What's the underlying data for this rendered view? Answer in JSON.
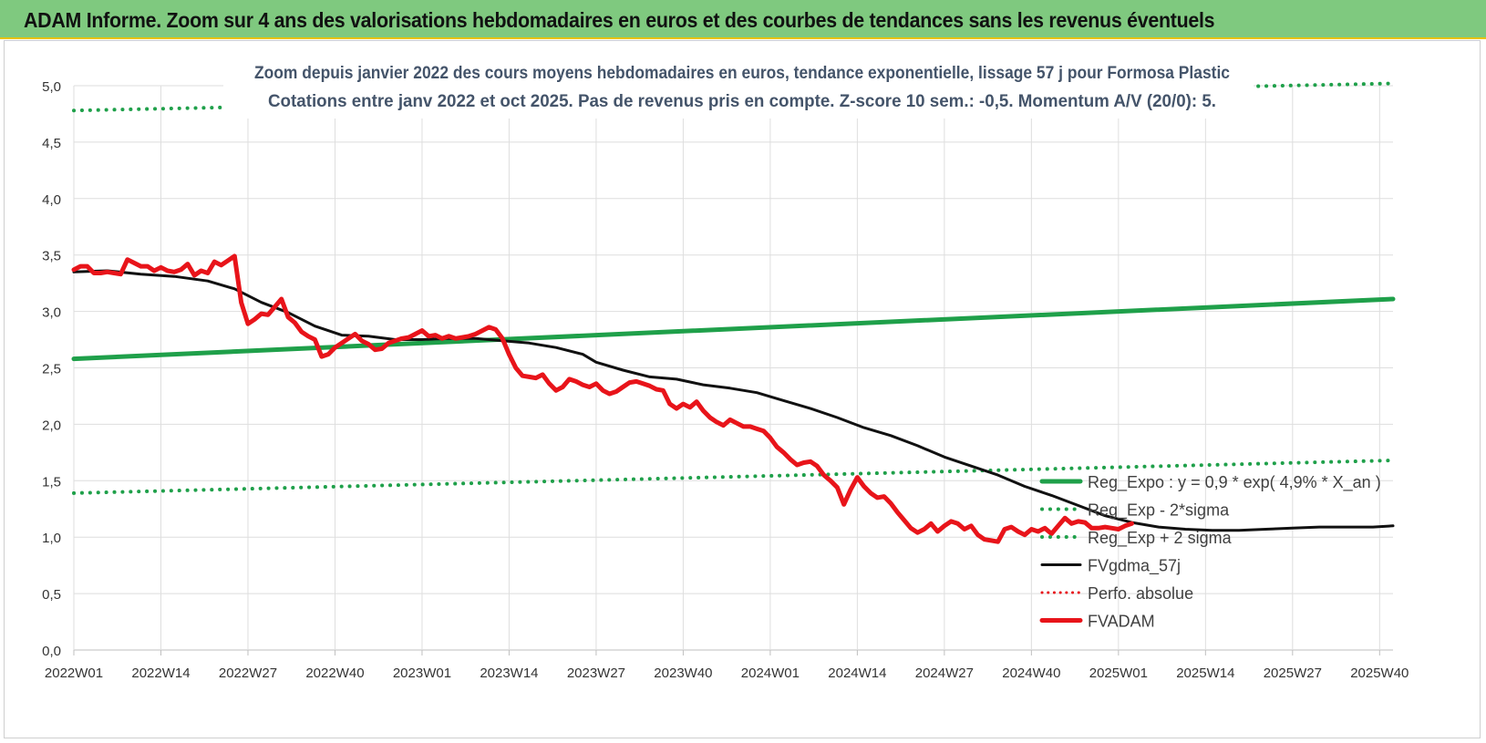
{
  "banner": {
    "title": "ADAM Informe. Zoom sur 4 ans des valorisations hebdomadaires en euros et des courbes de tendances sans les revenus éventuels"
  },
  "chart_data": {
    "type": "line",
    "title": "Zoom depuis janvier 2022 des cours moyens hebdomadaires en euros, tendance exponentielle, lissage 57 j pour Formosa Plastic",
    "subtitle": "Cotations entre janv 2022 et oct 2025. Pas de revenus pris en compte. Z-score 10 sem.: -0,5.  Momentum A/V (20/0): 5.",
    "xlabel": "",
    "ylabel": "",
    "ylim": [
      0,
      5
    ],
    "y_ticks": [
      "0,0",
      "0,5",
      "1,0",
      "1,5",
      "2,0",
      "2,5",
      "3,0",
      "3,5",
      "4,0",
      "4,5",
      "5,0"
    ],
    "x_range": [
      0,
      197
    ],
    "x_ticks": [
      {
        "x": 0,
        "label": "2022W01"
      },
      {
        "x": 13,
        "label": "2022W14"
      },
      {
        "x": 26,
        "label": "2022W27"
      },
      {
        "x": 39,
        "label": "2022W40"
      },
      {
        "x": 52,
        "label": "2023W01"
      },
      {
        "x": 65,
        "label": "2023W14"
      },
      {
        "x": 78,
        "label": "2023W27"
      },
      {
        "x": 91,
        "label": "2023W40"
      },
      {
        "x": 104,
        "label": "2024W01"
      },
      {
        "x": 117,
        "label": "2024W14"
      },
      {
        "x": 130,
        "label": "2024W27"
      },
      {
        "x": 143,
        "label": "2024W40"
      },
      {
        "x": 156,
        "label": "2025W01"
      },
      {
        "x": 169,
        "label": "2025W14"
      },
      {
        "x": 182,
        "label": "2025W27"
      },
      {
        "x": 195,
        "label": "2025W40"
      }
    ],
    "grid": true,
    "legend_position": "right",
    "series": [
      {
        "name": "Reg_Expo : y = 0,9 * exp( 4,9% *  X_an )",
        "style": "solid",
        "color": "#1fa04a",
        "width": 5,
        "points": [
          [
            0,
            2.58
          ],
          [
            197,
            3.11
          ]
        ]
      },
      {
        "name": "Reg_Exp - 2*sigma",
        "style": "dotted",
        "color": "#1fa04a",
        "width": 4,
        "points": [
          [
            0,
            1.39
          ],
          [
            197,
            1.68
          ]
        ]
      },
      {
        "name": "Reg_Exp + 2 sigma",
        "style": "dotted",
        "color": "#1fa04a",
        "width": 4,
        "points": [
          [
            0,
            4.78
          ],
          [
            197,
            5.02
          ]
        ]
      },
      {
        "name": "FVgdma_57j",
        "style": "solid",
        "color": "#111111",
        "width": 3,
        "points": [
          [
            0,
            3.35
          ],
          [
            5,
            3.36
          ],
          [
            10,
            3.33
          ],
          [
            15,
            3.31
          ],
          [
            20,
            3.27
          ],
          [
            24,
            3.2
          ],
          [
            28,
            3.08
          ],
          [
            32,
            2.99
          ],
          [
            36,
            2.87
          ],
          [
            40,
            2.79
          ],
          [
            44,
            2.78
          ],
          [
            48,
            2.75
          ],
          [
            52,
            2.75
          ],
          [
            56,
            2.76
          ],
          [
            60,
            2.76
          ],
          [
            64,
            2.74
          ],
          [
            68,
            2.72
          ],
          [
            72,
            2.68
          ],
          [
            76,
            2.62
          ],
          [
            78,
            2.55
          ],
          [
            82,
            2.48
          ],
          [
            86,
            2.42
          ],
          [
            90,
            2.4
          ],
          [
            94,
            2.35
          ],
          [
            98,
            2.32
          ],
          [
            102,
            2.28
          ],
          [
            106,
            2.21
          ],
          [
            110,
            2.14
          ],
          [
            114,
            2.06
          ],
          [
            118,
            1.97
          ],
          [
            122,
            1.9
          ],
          [
            126,
            1.81
          ],
          [
            130,
            1.71
          ],
          [
            134,
            1.63
          ],
          [
            138,
            1.55
          ],
          [
            142,
            1.45
          ],
          [
            146,
            1.37
          ],
          [
            150,
            1.28
          ],
          [
            154,
            1.19
          ],
          [
            158,
            1.13
          ],
          [
            162,
            1.09
          ],
          [
            166,
            1.07
          ],
          [
            170,
            1.06
          ],
          [
            174,
            1.06
          ],
          [
            178,
            1.07
          ],
          [
            182,
            1.08
          ],
          [
            186,
            1.09
          ],
          [
            190,
            1.09
          ],
          [
            194,
            1.09
          ],
          [
            197,
            1.1
          ]
        ]
      },
      {
        "name": "Perfo. absolue",
        "style": "dotted",
        "color": "#e8141a",
        "width": 3,
        "points": []
      },
      {
        "name": "FVADAM",
        "style": "solid",
        "color": "#e8141a",
        "width": 5,
        "points": [
          [
            0,
            3.37
          ],
          [
            1,
            3.4
          ],
          [
            2,
            3.4
          ],
          [
            3,
            3.34
          ],
          [
            4,
            3.34
          ],
          [
            5,
            3.35
          ],
          [
            6,
            3.34
          ],
          [
            7,
            3.33
          ],
          [
            8,
            3.46
          ],
          [
            9,
            3.43
          ],
          [
            10,
            3.4
          ],
          [
            11,
            3.4
          ],
          [
            12,
            3.36
          ],
          [
            13,
            3.39
          ],
          [
            14,
            3.36
          ],
          [
            15,
            3.35
          ],
          [
            16,
            3.37
          ],
          [
            17,
            3.42
          ],
          [
            18,
            3.32
          ],
          [
            19,
            3.36
          ],
          [
            20,
            3.34
          ],
          [
            21,
            3.44
          ],
          [
            22,
            3.41
          ],
          [
            23,
            3.45
          ],
          [
            24,
            3.49
          ],
          [
            25,
            3.08
          ],
          [
            26,
            2.89
          ],
          [
            27,
            2.93
          ],
          [
            28,
            2.98
          ],
          [
            29,
            2.97
          ],
          [
            30,
            3.04
          ],
          [
            31,
            3.11
          ],
          [
            32,
            2.95
          ],
          [
            33,
            2.9
          ],
          [
            34,
            2.82
          ],
          [
            35,
            2.78
          ],
          [
            36,
            2.75
          ],
          [
            37,
            2.6
          ],
          [
            38,
            2.62
          ],
          [
            39,
            2.68
          ],
          [
            40,
            2.72
          ],
          [
            41,
            2.76
          ],
          [
            42,
            2.8
          ],
          [
            43,
            2.74
          ],
          [
            44,
            2.71
          ],
          [
            45,
            2.66
          ],
          [
            46,
            2.67
          ],
          [
            47,
            2.72
          ],
          [
            48,
            2.74
          ],
          [
            49,
            2.76
          ],
          [
            50,
            2.77
          ],
          [
            51,
            2.8
          ],
          [
            52,
            2.83
          ],
          [
            53,
            2.78
          ],
          [
            54,
            2.79
          ],
          [
            55,
            2.76
          ],
          [
            56,
            2.78
          ],
          [
            57,
            2.76
          ],
          [
            58,
            2.77
          ],
          [
            59,
            2.78
          ],
          [
            60,
            2.8
          ],
          [
            61,
            2.83
          ],
          [
            62,
            2.86
          ],
          [
            63,
            2.84
          ],
          [
            64,
            2.76
          ],
          [
            65,
            2.62
          ],
          [
            66,
            2.5
          ],
          [
            67,
            2.43
          ],
          [
            68,
            2.42
          ],
          [
            69,
            2.41
          ],
          [
            70,
            2.44
          ],
          [
            71,
            2.36
          ],
          [
            72,
            2.3
          ],
          [
            73,
            2.33
          ],
          [
            74,
            2.4
          ],
          [
            75,
            2.38
          ],
          [
            76,
            2.35
          ],
          [
            77,
            2.33
          ],
          [
            78,
            2.36
          ],
          [
            79,
            2.3
          ],
          [
            80,
            2.27
          ],
          [
            81,
            2.29
          ],
          [
            82,
            2.33
          ],
          [
            83,
            2.37
          ],
          [
            84,
            2.38
          ],
          [
            85,
            2.36
          ],
          [
            86,
            2.34
          ],
          [
            87,
            2.31
          ],
          [
            88,
            2.3
          ],
          [
            89,
            2.18
          ],
          [
            90,
            2.14
          ],
          [
            91,
            2.18
          ],
          [
            92,
            2.15
          ],
          [
            93,
            2.2
          ],
          [
            94,
            2.12
          ],
          [
            95,
            2.06
          ],
          [
            96,
            2.02
          ],
          [
            97,
            1.99
          ],
          [
            98,
            2.04
          ],
          [
            99,
            2.01
          ],
          [
            100,
            1.98
          ],
          [
            101,
            1.98
          ],
          [
            102,
            1.96
          ],
          [
            103,
            1.94
          ],
          [
            104,
            1.88
          ],
          [
            105,
            1.8
          ],
          [
            106,
            1.75
          ],
          [
            107,
            1.69
          ],
          [
            108,
            1.64
          ],
          [
            109,
            1.66
          ],
          [
            110,
            1.67
          ],
          [
            111,
            1.63
          ],
          [
            112,
            1.55
          ],
          [
            113,
            1.5
          ],
          [
            114,
            1.44
          ],
          [
            115,
            1.29
          ],
          [
            116,
            1.42
          ],
          [
            117,
            1.53
          ],
          [
            118,
            1.45
          ],
          [
            119,
            1.39
          ],
          [
            120,
            1.35
          ],
          [
            121,
            1.36
          ],
          [
            122,
            1.3
          ],
          [
            123,
            1.22
          ],
          [
            124,
            1.15
          ],
          [
            125,
            1.08
          ],
          [
            126,
            1.04
          ],
          [
            127,
            1.07
          ],
          [
            128,
            1.12
          ],
          [
            129,
            1.05
          ],
          [
            130,
            1.1
          ],
          [
            131,
            1.14
          ],
          [
            132,
            1.12
          ],
          [
            133,
            1.07
          ],
          [
            134,
            1.1
          ],
          [
            135,
            1.02
          ],
          [
            136,
            0.98
          ],
          [
            137,
            0.97
          ],
          [
            138,
            0.96
          ],
          [
            139,
            1.07
          ],
          [
            140,
            1.09
          ],
          [
            141,
            1.05
          ],
          [
            142,
            1.02
          ],
          [
            143,
            1.07
          ],
          [
            144,
            1.05
          ],
          [
            145,
            1.08
          ],
          [
            146,
            1.03
          ],
          [
            147,
            1.1
          ],
          [
            148,
            1.17
          ],
          [
            149,
            1.12
          ],
          [
            150,
            1.14
          ],
          [
            151,
            1.13
          ],
          [
            152,
            1.08
          ],
          [
            153,
            1.08
          ],
          [
            154,
            1.09
          ],
          [
            155,
            1.08
          ],
          [
            156,
            1.07
          ],
          [
            157,
            1.1
          ],
          [
            158,
            1.12
          ]
        ]
      }
    ]
  }
}
